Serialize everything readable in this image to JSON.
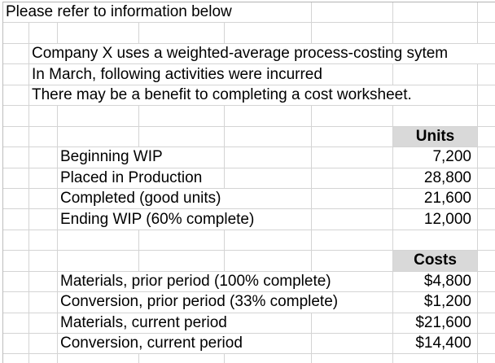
{
  "sheet": {
    "notes": {
      "title": "Please refer to information below",
      "line1": "Company X uses a weighted-average process-costing sytem",
      "line2": "In March, following activities were incurred",
      "line3": "There may be a benefit to completing a cost worksheet."
    },
    "units_section": {
      "header": "Units",
      "rows": [
        {
          "label": "Beginning WIP",
          "value": "7,200"
        },
        {
          "label": "Placed in Production",
          "value": "28,800"
        },
        {
          "label": "Completed (good units)",
          "value": "21,600"
        },
        {
          "label": "Ending WIP (60% complete)",
          "value": "12,000"
        }
      ]
    },
    "costs_section": {
      "header": "Costs",
      "rows": [
        {
          "label": "Materials, prior period (100% complete)",
          "value": "$4,800"
        },
        {
          "label": "Conversion, prior period (33% complete)",
          "value": "$1,200"
        },
        {
          "label": "Materials, current period",
          "value": "$21,600"
        },
        {
          "label": "Conversion, current period",
          "value": "$14,400"
        }
      ]
    },
    "colors": {
      "header_fill": "#d9d9d9",
      "gridline": "#d4d4d4",
      "text": "#000000",
      "background": "#ffffff"
    }
  }
}
